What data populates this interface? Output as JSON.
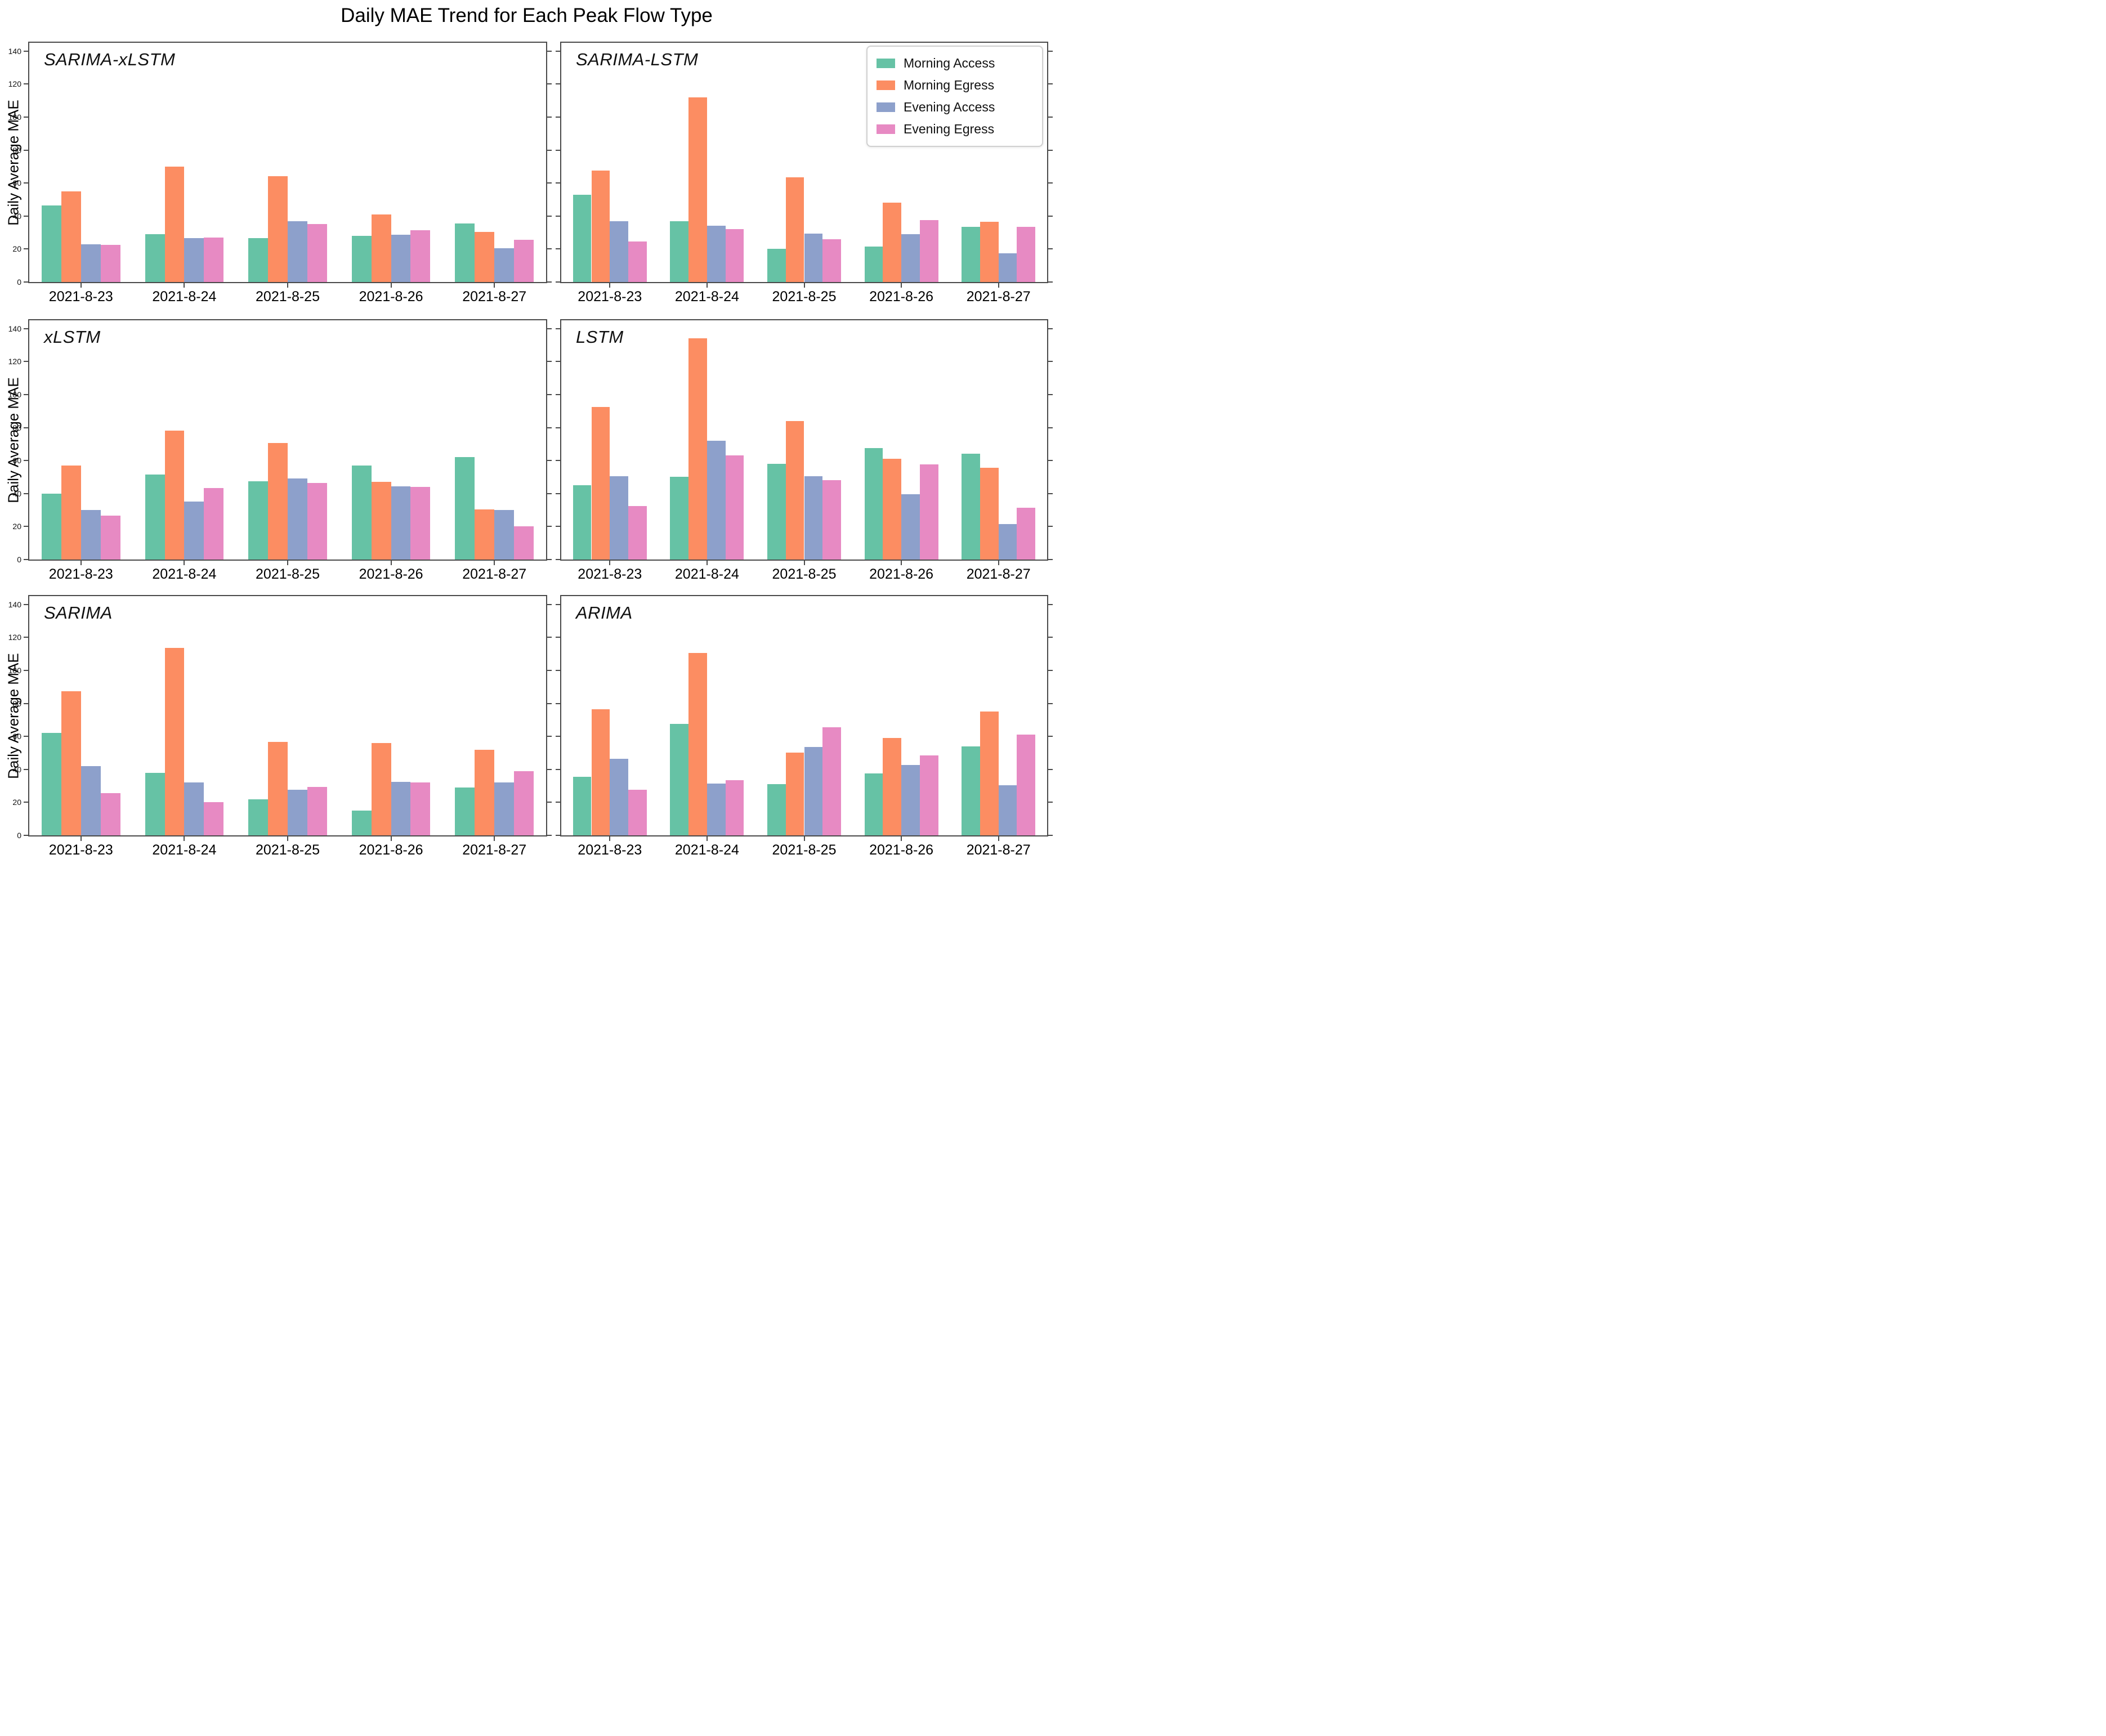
{
  "figure_title": "Daily MAE Trend for Each Peak Flow Type",
  "ylabel": "Daily Average MAE",
  "palette": {
    "morning_access": "#66c2a5",
    "morning_egress": "#fc8d62",
    "evening_access": "#8da0cb",
    "evening_egress": "#e78ac3",
    "spine": "#4a4a4a"
  },
  "legend": {
    "position": "top-right",
    "entries": [
      {
        "label": "Morning Access",
        "color": "#66c2a5"
      },
      {
        "label": "Morning Egress",
        "color": "#fc8d62"
      },
      {
        "label": "Evening Access",
        "color": "#8da0cb"
      },
      {
        "label": "Evening Egress",
        "color": "#e78ac3"
      }
    ]
  },
  "chart_data": [
    {
      "type": "bar",
      "title": "SARIMA-xLSTM",
      "categories": [
        "2021-8-23",
        "2021-8-24",
        "2021-8-25",
        "2021-8-26",
        "2021-8-27"
      ],
      "series": [
        {
          "name": "Morning Access",
          "values": [
            46.5,
            29,
            26.5,
            28,
            35.5
          ]
        },
        {
          "name": "Morning Egress",
          "values": [
            55,
            70,
            64,
            41,
            30.5
          ]
        },
        {
          "name": "Evening Access",
          "values": [
            23,
            26.5,
            37,
            28.5,
            20.5
          ]
        },
        {
          "name": "Evening Egress",
          "values": [
            22.5,
            27,
            35,
            31.5,
            25.5
          ]
        }
      ],
      "ylabel": "Daily Average MAE",
      "ylim": [
        0,
        145
      ],
      "yticks": [
        0,
        20,
        40,
        60,
        80,
        100,
        120,
        140
      ],
      "grid": false
    },
    {
      "type": "bar",
      "title": "SARIMA-LSTM",
      "categories": [
        "2021-8-23",
        "2021-8-24",
        "2021-8-25",
        "2021-8-26",
        "2021-8-27"
      ],
      "series": [
        {
          "name": "Morning Access",
          "values": [
            53,
            37,
            20,
            21.5,
            33.5
          ]
        },
        {
          "name": "Morning Egress",
          "values": [
            67.5,
            112,
            63.5,
            48,
            36.5
          ]
        },
        {
          "name": "Evening Access",
          "values": [
            37,
            34,
            29.5,
            29,
            17.5
          ]
        },
        {
          "name": "Evening Egress",
          "values": [
            24.5,
            32,
            26,
            37.5,
            33.5
          ]
        }
      ],
      "ylabel": "Daily Average MAE",
      "ylim": [
        0,
        145
      ],
      "yticks": [
        0,
        20,
        40,
        60,
        80,
        100,
        120,
        140
      ],
      "grid": false
    },
    {
      "type": "bar",
      "title": "xLSTM",
      "categories": [
        "2021-8-23",
        "2021-8-24",
        "2021-8-25",
        "2021-8-26",
        "2021-8-27"
      ],
      "series": [
        {
          "name": "Morning Access",
          "values": [
            40,
            51.5,
            47.5,
            57,
            62
          ]
        },
        {
          "name": "Morning Egress",
          "values": [
            57,
            78,
            70.5,
            47,
            30.5
          ]
        },
        {
          "name": "Evening Access",
          "values": [
            30,
            35,
            49,
            44.5,
            30
          ]
        },
        {
          "name": "Evening Egress",
          "values": [
            26.5,
            43.5,
            46.5,
            44,
            20
          ]
        }
      ],
      "ylabel": "Daily Average MAE",
      "ylim": [
        0,
        145
      ],
      "yticks": [
        0,
        20,
        40,
        60,
        80,
        100,
        120,
        140
      ],
      "grid": false
    },
    {
      "type": "bar",
      "title": "LSTM",
      "categories": [
        "2021-8-23",
        "2021-8-24",
        "2021-8-25",
        "2021-8-26",
        "2021-8-27"
      ],
      "series": [
        {
          "name": "Morning Access",
          "values": [
            45,
            50,
            58,
            67.5,
            64
          ]
        },
        {
          "name": "Morning Egress",
          "values": [
            92.5,
            134,
            84,
            61,
            55.5
          ]
        },
        {
          "name": "Evening Access",
          "values": [
            50.5,
            72,
            50.5,
            39.5,
            21.5
          ]
        },
        {
          "name": "Evening Egress",
          "values": [
            32.5,
            63,
            48,
            57.5,
            31.5
          ]
        }
      ],
      "ylabel": "Daily Average MAE",
      "ylim": [
        0,
        145
      ],
      "yticks": [
        0,
        20,
        40,
        60,
        80,
        100,
        120,
        140
      ],
      "grid": false
    },
    {
      "type": "bar",
      "title": "SARIMA",
      "categories": [
        "2021-8-23",
        "2021-8-24",
        "2021-8-25",
        "2021-8-26",
        "2021-8-27"
      ],
      "series": [
        {
          "name": "Morning Access",
          "values": [
            62,
            38,
            22,
            15,
            29
          ]
        },
        {
          "name": "Morning Egress",
          "values": [
            87.5,
            113.5,
            56.5,
            56,
            52
          ]
        },
        {
          "name": "Evening Access",
          "values": [
            42,
            32,
            27.5,
            32.5,
            32
          ]
        },
        {
          "name": "Evening Egress",
          "values": [
            25.5,
            20,
            29.5,
            32,
            39
          ]
        }
      ],
      "ylabel": "Daily Average MAE",
      "ylim": [
        0,
        145
      ],
      "yticks": [
        0,
        20,
        40,
        60,
        80,
        100,
        120,
        140
      ],
      "grid": false
    },
    {
      "type": "bar",
      "title": "ARIMA",
      "categories": [
        "2021-8-23",
        "2021-8-24",
        "2021-8-25",
        "2021-8-26",
        "2021-8-27"
      ],
      "series": [
        {
          "name": "Morning Access",
          "values": [
            35.5,
            67.5,
            31,
            37.5,
            54
          ]
        },
        {
          "name": "Morning Egress",
          "values": [
            76.5,
            110.5,
            50,
            59,
            75
          ]
        },
        {
          "name": "Evening Access",
          "values": [
            46.5,
            31.5,
            53.5,
            42.5,
            30.5
          ]
        },
        {
          "name": "Evening Egress",
          "values": [
            27.5,
            33.5,
            65.5,
            48.5,
            61
          ]
        }
      ],
      "ylabel": "Daily Average MAE",
      "ylim": [
        0,
        145
      ],
      "yticks": [
        0,
        20,
        40,
        60,
        80,
        100,
        120,
        140
      ],
      "grid": false
    }
  ]
}
